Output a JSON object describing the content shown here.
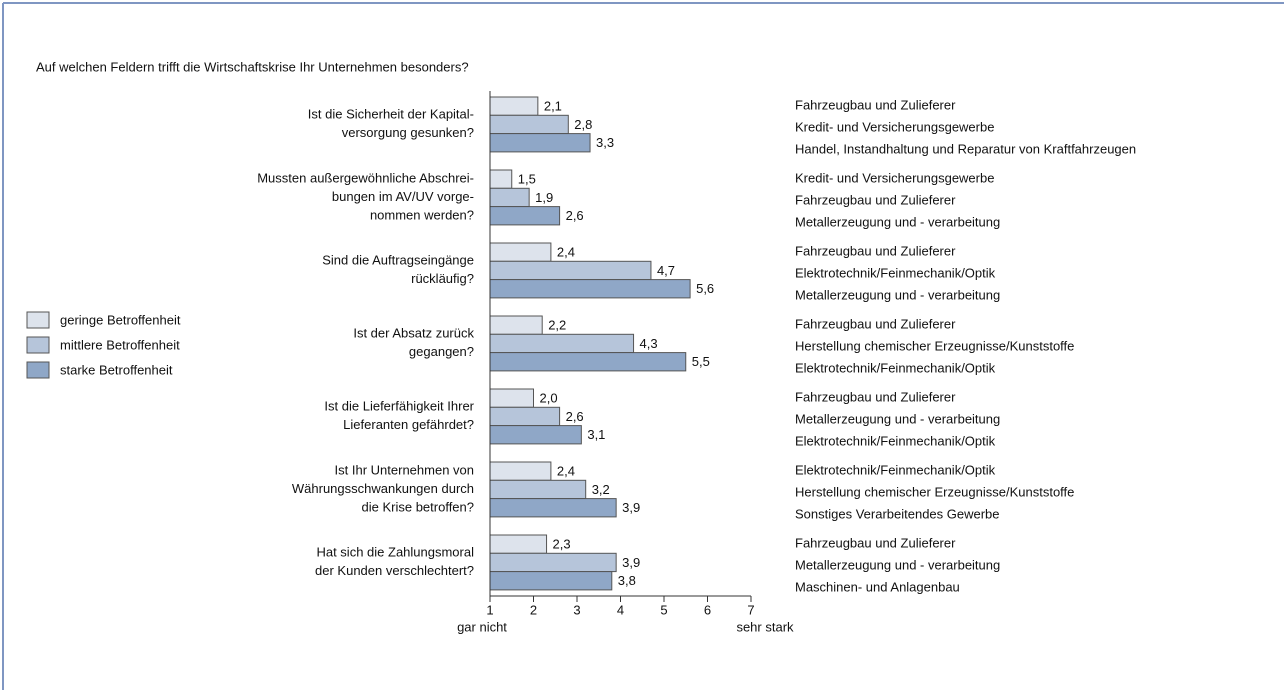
{
  "chart_data": {
    "type": "bar",
    "orientation": "horizontal",
    "title": "Auf welchen Feldern trifft die Wirtschaftskrise Ihr Unternehmen  besonders?",
    "categories": [
      [
        "Ist die Sicherheit der Kapital-",
        "versorgung gesunken?"
      ],
      [
        "Mussten außergewöhnliche Abschrei-",
        "bungen im AV/UV vorge-",
        "nommen werden?"
      ],
      [
        "Sind die Auftragseingänge",
        "rückläufig?"
      ],
      [
        "Ist der Absatz zurück",
        "gegangen?"
      ],
      [
        "Ist die Lieferfähigkeit Ihrer",
        "Lieferanten gefährdet?"
      ],
      [
        "Ist Ihr Unternehmen  von",
        "Währungsschwankungen durch",
        "die Krise betroffen?"
      ],
      [
        "Hat sich die Zahlungsmoral",
        "der Kunden verschlechtert?"
      ]
    ],
    "series": [
      {
        "name": "geringe Betroffenheit",
        "color": "#dde3ec",
        "values": [
          2.1,
          1.5,
          2.4,
          2.2,
          2.0,
          2.4,
          2.3
        ],
        "value_labels": [
          "2,1",
          "1,5",
          "2,4",
          "2,2",
          "2,0",
          "2,4",
          "2,3"
        ]
      },
      {
        "name": "mittlere Betroffenheit",
        "color": "#b6c5da",
        "values": [
          2.8,
          1.9,
          4.7,
          4.3,
          2.6,
          3.2,
          3.9
        ],
        "value_labels": [
          "2,8",
          "1,9",
          "4,7",
          "4,3",
          "2,6",
          "3,2",
          "3,9"
        ]
      },
      {
        "name": "starke Betroffenheit",
        "color": "#8fa7c7",
        "values": [
          3.3,
          2.6,
          5.6,
          5.5,
          3.1,
          3.9,
          3.8
        ],
        "value_labels": [
          "3,3",
          "2,6",
          "5,6",
          "5,5",
          "3,1",
          "3,9",
          "3,8"
        ]
      }
    ],
    "industries": [
      [
        "Fahrzeugbau und Zulieferer",
        "Kredit- und Versicherungsgewerbe",
        "Handel, Instandhaltung und Reparatur von Kraftfahrzeugen"
      ],
      [
        "Kredit- und Versicherungsgewerbe",
        "Fahrzeugbau und Zulieferer",
        "Metallerzeugung und - verarbeitung"
      ],
      [
        "Fahrzeugbau und Zulieferer",
        "Elektrotechnik/Feinmechanik/Optik",
        "Metallerzeugung und - verarbeitung"
      ],
      [
        "Fahrzeugbau und Zulieferer",
        "Herstellung chemischer Erzeugnisse/Kunststoffe",
        "Elektrotechnik/Feinmechanik/Optik"
      ],
      [
        "Fahrzeugbau und Zulieferer",
        "Metallerzeugung und - verarbeitung",
        "Elektrotechnik/Feinmechanik/Optik"
      ],
      [
        "Elektrotechnik/Feinmechanik/Optik",
        "Herstellung chemischer Erzeugnisse/Kunststoffe",
        "Sonstiges Verarbeitendes Gewerbe"
      ],
      [
        "Fahrzeugbau und Zulieferer",
        "Metallerzeugung und - verarbeitung",
        "Maschinen- und Anlagenbau"
      ]
    ],
    "xlim": [
      1,
      7
    ],
    "xticks": [
      1,
      2,
      3,
      4,
      5,
      6,
      7
    ],
    "xlabel_low": "gar nicht",
    "xlabel_high": "sehr stark",
    "legend": "left"
  }
}
